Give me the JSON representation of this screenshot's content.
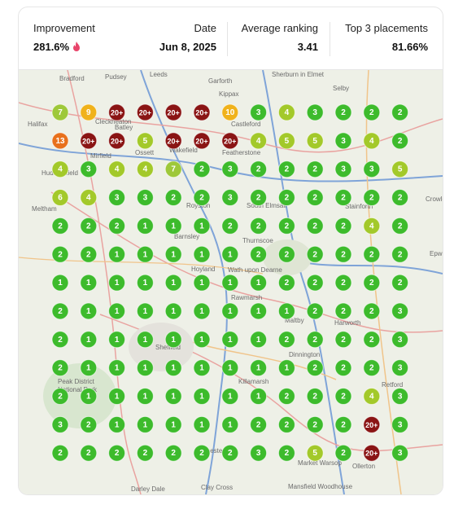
{
  "header": {
    "stats": [
      {
        "label": "Improvement",
        "value": "281.6%"
      },
      {
        "label": "Date",
        "value": "Jun 8, 2025"
      },
      {
        "label": "Average ranking",
        "value": "3.41"
      },
      {
        "label": "Top 3 placements",
        "value": "81.66%"
      }
    ]
  },
  "map": {
    "labels": [
      "Bradford",
      "Pudsey",
      "Leeds",
      "Garforth",
      "Sherburn in Elmet",
      "Selby",
      "Kippax",
      "Cleckheaton",
      "Batley",
      "Castleford",
      "Halifax",
      "Ossett",
      "Wakefield",
      "Featherstone",
      "Mirfield",
      "Huddersfield",
      "Meltham",
      "Royston",
      "South Elmsall",
      "Stainforth",
      "Crowle",
      "Barnsley",
      "Thurnscoe",
      "Epworth",
      "Hoyland",
      "Wath upon Dearne",
      "Rawmarsh",
      "Maltby",
      "Harworth",
      "Sheffield",
      "Dinnington",
      "Killamarsh",
      "Retford",
      "Peak District",
      "National Park",
      "Chesterfield",
      "Market Warsop",
      "Ollerton",
      "Mansfield Woodhouse",
      "Darley Dale",
      "Clay Cross"
    ],
    "grid": [
      [
        "7",
        "9",
        "20+",
        "20+",
        "20+",
        "20+",
        "10",
        "3",
        "4",
        "3",
        "2",
        "2",
        "2"
      ],
      [
        "13",
        "20+",
        "20+",
        "5",
        "20+",
        "20+",
        "20+",
        "4",
        "5",
        "5",
        "3",
        "4",
        "2"
      ],
      [
        "4",
        "3",
        "4",
        "4",
        "7",
        "2",
        "3",
        "2",
        "2",
        "2",
        "3",
        "3",
        "5"
      ],
      [
        "6",
        "4",
        "3",
        "3",
        "2",
        "2",
        "3",
        "2",
        "2",
        "2",
        "2",
        "2",
        "2"
      ],
      [
        "2",
        "2",
        "2",
        "1",
        "1",
        "1",
        "2",
        "2",
        "2",
        "2",
        "2",
        "4",
        "2"
      ],
      [
        "2",
        "2",
        "1",
        "1",
        "1",
        "1",
        "1",
        "2",
        "2",
        "2",
        "2",
        "2",
        "2"
      ],
      [
        "1",
        "1",
        "1",
        "1",
        "1",
        "1",
        "1",
        "1",
        "2",
        "2",
        "2",
        "2",
        "2"
      ],
      [
        "2",
        "1",
        "1",
        "1",
        "1",
        "1",
        "1",
        "1",
        "1",
        "2",
        "2",
        "2",
        "3"
      ],
      [
        "2",
        "1",
        "1",
        "1",
        "1",
        "1",
        "1",
        "1",
        "2",
        "2",
        "2",
        "2",
        "3"
      ],
      [
        "2",
        "1",
        "1",
        "1",
        "1",
        "1",
        "1",
        "1",
        "1",
        "2",
        "2",
        "2",
        "3"
      ],
      [
        "2",
        "1",
        "1",
        "1",
        "1",
        "1",
        "1",
        "1",
        "2",
        "2",
        "2",
        "4",
        "3"
      ],
      [
        "3",
        "2",
        "1",
        "1",
        "1",
        "1",
        "1",
        "2",
        "2",
        "2",
        "2",
        "20+",
        "3"
      ],
      [
        "2",
        "2",
        "2",
        "2",
        "2",
        "2",
        "2",
        "3",
        "2",
        "5",
        "2",
        "20+",
        "3"
      ]
    ]
  }
}
